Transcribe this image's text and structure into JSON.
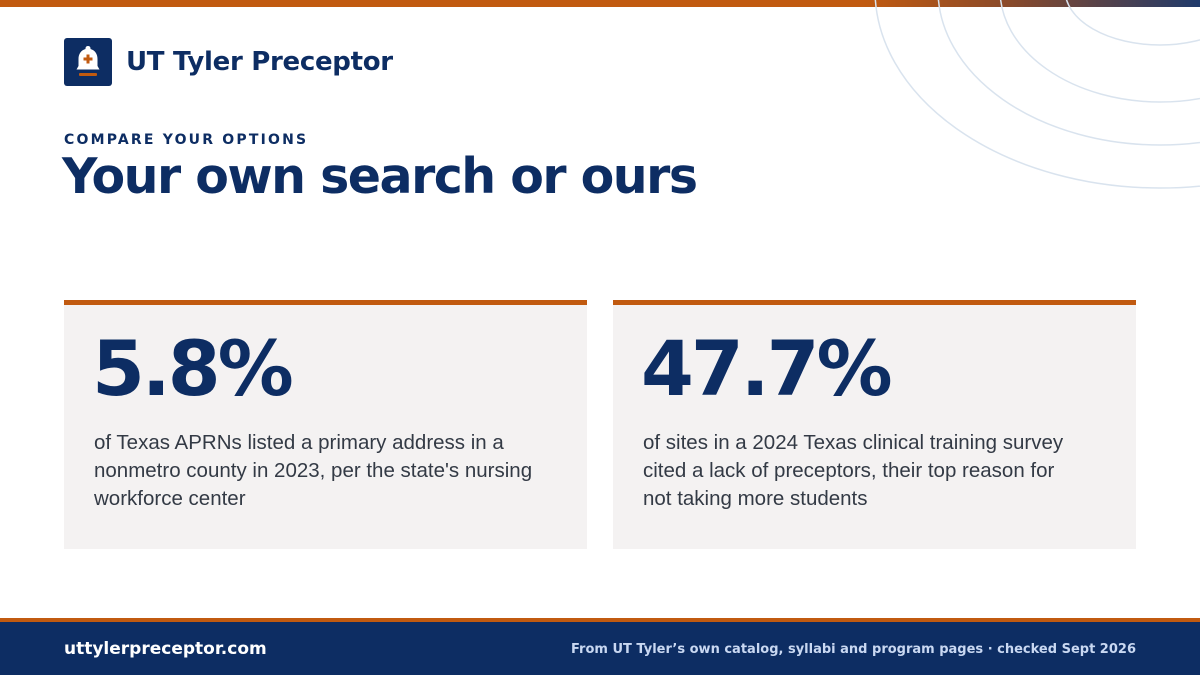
{
  "brand": {
    "name": "UT Tyler Preceptor",
    "logo_icon": "bell-with-cross-icon",
    "colors": {
      "navy": "#0d2d63",
      "accent_orange": "#c15a10"
    }
  },
  "header": {
    "eyebrow": "COMPARE YOUR OPTIONS",
    "title": "Your own search or ours"
  },
  "stats": [
    {
      "value": "5.8%",
      "description": "of Texas APRNs listed a primary address in a nonmetro county in 2023, per the state's nursing workforce center"
    },
    {
      "value": "47.7%",
      "description": "of sites in a 2024 Texas clinical training survey cited a lack of preceptors, their top reason for not taking more students"
    }
  ],
  "footer": {
    "url": "uttylerpreceptor.com",
    "source": "From UT Tyler’s own catalog, syllabi and program pages · checked Sept 2026"
  }
}
